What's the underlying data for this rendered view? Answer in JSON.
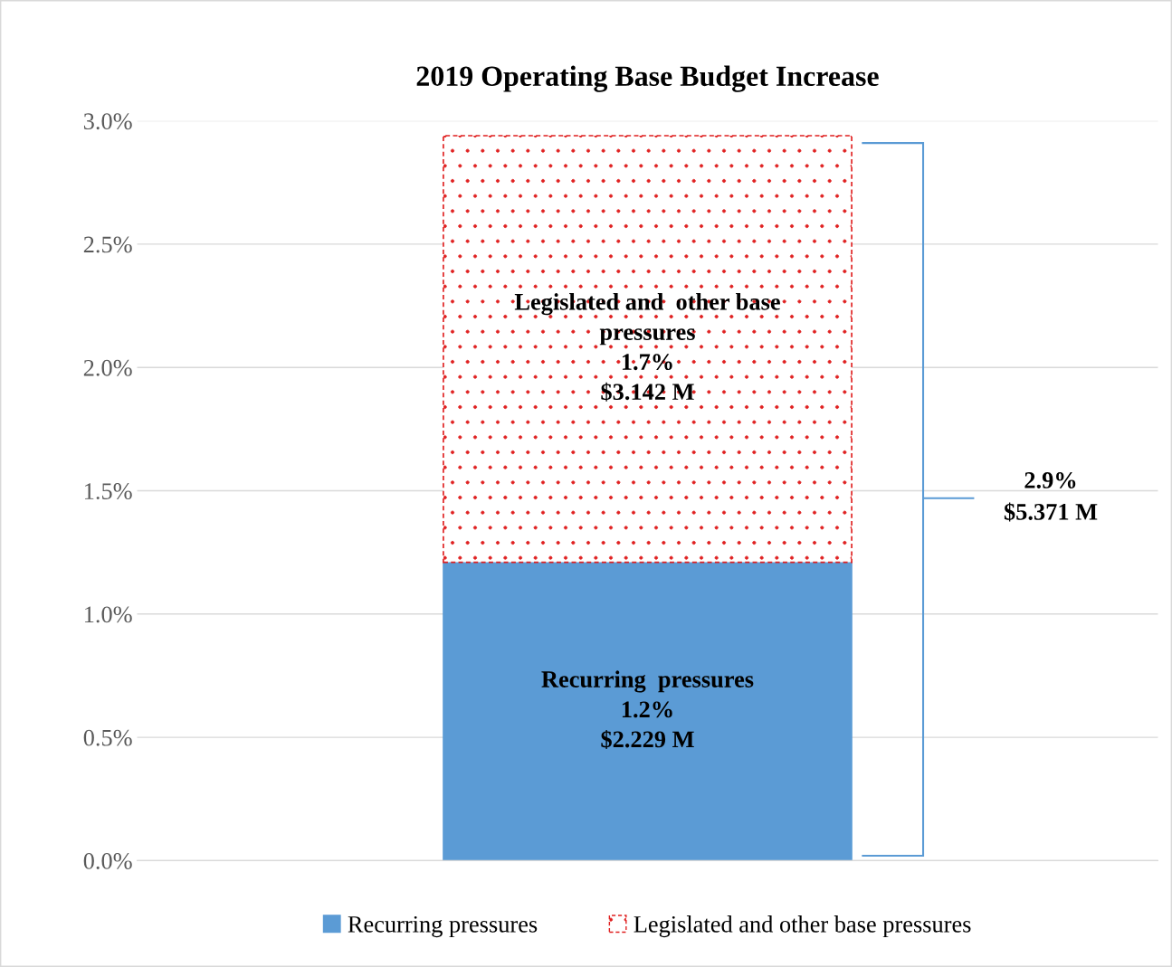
{
  "chart_data": {
    "type": "bar",
    "title": "2019 Operating Base Budget Increase",
    "categories": [
      null
    ],
    "stacked": true,
    "series": [
      {
        "name": "Recurring pressures",
        "color": "#5b9bd5",
        "values": [
          1.21
        ],
        "value_labels": [
          "Recurring  pressures\n1.2%\n$2.229 M"
        ]
      },
      {
        "name": "Legislated and other base pressures",
        "color": "#e02020",
        "values": [
          1.73
        ],
        "value_labels": [
          "Legislated and  other base\npressures\n1.7%\n$3.142 M"
        ]
      }
    ],
    "annotations": [
      "2.9%\n$5.371 M"
    ],
    "ylim": [
      0,
      3.0
    ],
    "yticks": [
      {
        "value": 0,
        "label": "0.0%"
      },
      {
        "value": 0.5,
        "label": "0.5%"
      },
      {
        "value": 1.0,
        "label": "1.0%"
      },
      {
        "value": 1.5,
        "label": "1.5%"
      },
      {
        "value": 2.0,
        "label": "2.0%"
      },
      {
        "value": 2.5,
        "label": "2.5%"
      },
      {
        "value": 3.0,
        "label": "3.0%"
      }
    ],
    "grid": "y",
    "legend": "bottom"
  }
}
